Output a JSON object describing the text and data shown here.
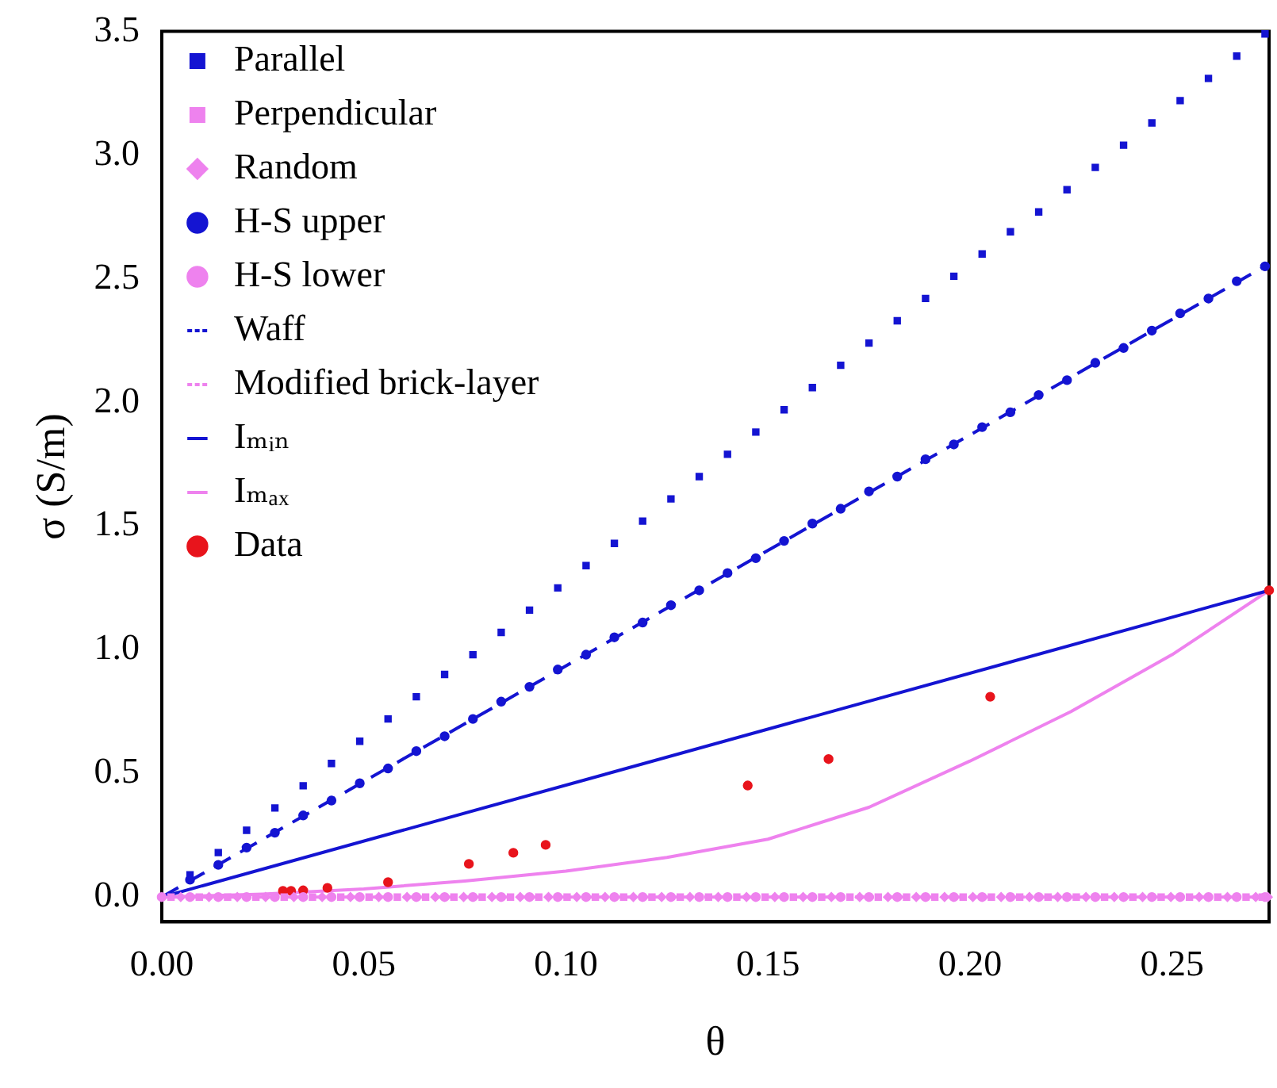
{
  "chart_data": {
    "type": "scatter",
    "xlabel": "θ",
    "ylabel": "σ (S/m)",
    "xlim": [
      0,
      0.274
    ],
    "ylim": [
      -0.1,
      3.5
    ],
    "xticks": [
      {
        "value": 0,
        "label": "0.00"
      },
      {
        "value": 0.05,
        "label": "0.05"
      },
      {
        "value": 0.1,
        "label": "0.10"
      },
      {
        "value": 0.15,
        "label": "0.15"
      },
      {
        "value": 0.2,
        "label": "0.20"
      },
      {
        "value": 0.25,
        "label": "0.25"
      }
    ],
    "yticks": [
      {
        "value": 0,
        "label": "0.0"
      },
      {
        "value": 0.5,
        "label": "0.5"
      },
      {
        "value": 1,
        "label": "1.0"
      },
      {
        "value": 1.5,
        "label": "1.5"
      },
      {
        "value": 2,
        "label": "2.0"
      },
      {
        "value": 2.5,
        "label": "2.5"
      },
      {
        "value": 3,
        "label": "3.0"
      },
      {
        "value": 3.5,
        "label": "3.5"
      }
    ],
    "grid": false,
    "legend": "top left",
    "x": [
      0,
      0.007,
      0.014,
      0.021,
      0.028,
      0.035,
      0.042,
      0.049,
      0.056,
      0.063,
      0.07,
      0.077,
      0.084,
      0.091,
      0.098,
      0.105,
      0.112,
      0.119,
      0.126,
      0.133,
      0.14,
      0.147,
      0.154,
      0.161,
      0.168,
      0.175,
      0.182,
      0.189,
      0.196,
      0.203,
      0.21,
      0.217,
      0.224,
      0.231,
      0.238,
      0.245,
      0.252,
      0.259,
      0.266,
      0.273
    ],
    "series": [
      {
        "name": "Parallel",
        "marker": "square",
        "color": "#1414d2",
        "values": [
          null,
          0.09,
          0.18,
          0.27,
          0.36,
          0.45,
          0.54,
          0.63,
          0.72,
          0.81,
          0.9,
          0.98,
          1.07,
          1.16,
          1.25,
          1.34,
          1.43,
          1.52,
          1.61,
          1.7,
          1.79,
          1.88,
          1.97,
          2.06,
          2.15,
          2.24,
          2.33,
          2.42,
          2.51,
          2.6,
          2.69,
          2.77,
          2.86,
          2.95,
          3.04,
          3.13,
          3.22,
          3.31,
          3.4,
          3.49
        ]
      },
      {
        "name": "Perpendicular",
        "marker": "square",
        "color": "#ee82ee",
        "x": [
          0.0023,
          0.0093,
          0.0163,
          0.0233,
          0.0303,
          0.0373,
          0.0443,
          0.0513,
          0.0583,
          0.0653,
          0.0723,
          0.0793,
          0.0863,
          0.0933,
          0.1003,
          0.1073,
          0.1143,
          0.1213,
          0.1283,
          0.1353,
          0.1423,
          0.1493,
          0.1563,
          0.1633,
          0.1703,
          0.1773,
          0.1843,
          0.1913,
          0.1983,
          0.2053,
          0.2123,
          0.2193,
          0.2263,
          0.2333,
          0.2403,
          0.2473,
          0.2543,
          0.2613,
          0.2683,
          0.2723
        ],
        "values": [
          0,
          0,
          0,
          0,
          0,
          0,
          0,
          0,
          0,
          0,
          0,
          0,
          0,
          0,
          0,
          0,
          0,
          0,
          0,
          0,
          0,
          0,
          0,
          0,
          0,
          0,
          0,
          0,
          0,
          0,
          0,
          0,
          0,
          0,
          0,
          0,
          0,
          0,
          0,
          0
        ]
      },
      {
        "name": "Random",
        "marker": "diamond",
        "color": "#ee82ee",
        "x": [
          0.0047,
          0.0117,
          0.0187,
          0.0257,
          0.0327,
          0.0397,
          0.0467,
          0.0537,
          0.0607,
          0.0677,
          0.0747,
          0.0817,
          0.0887,
          0.0957,
          0.1027,
          0.1097,
          0.1167,
          0.1237,
          0.1307,
          0.1377,
          0.1447,
          0.1517,
          0.1587,
          0.1657,
          0.1727,
          0.1797,
          0.1867,
          0.1937,
          0.2007,
          0.2077,
          0.2147,
          0.2217,
          0.2287,
          0.2357,
          0.2427,
          0.2497,
          0.2567,
          0.2637,
          0.2707,
          0.2737
        ],
        "values": [
          0,
          0,
          0,
          0,
          0,
          0,
          0,
          0,
          0,
          0,
          0,
          0,
          0,
          0,
          0,
          0,
          0,
          0,
          0,
          0,
          0,
          0,
          0,
          0,
          0,
          0,
          0,
          0,
          0,
          0,
          0,
          0,
          0,
          0,
          0,
          0,
          0,
          0,
          0,
          0
        ]
      },
      {
        "name": "H-S upper",
        "marker": "circle",
        "color": "#1414d2",
        "values": [
          null,
          0.07,
          0.13,
          0.2,
          0.26,
          0.33,
          0.39,
          0.46,
          0.52,
          0.59,
          0.65,
          0.72,
          0.79,
          0.85,
          0.92,
          0.98,
          1.05,
          1.11,
          1.18,
          1.24,
          1.31,
          1.37,
          1.44,
          1.51,
          1.57,
          1.64,
          1.7,
          1.77,
          1.83,
          1.9,
          1.96,
          2.03,
          2.09,
          2.16,
          2.22,
          2.29,
          2.36,
          2.42,
          2.49,
          2.55
        ]
      },
      {
        "name": "H-S lower",
        "marker": "circle",
        "color": "#ee82ee",
        "values": [
          0,
          0,
          0,
          0,
          0,
          0,
          0,
          0,
          0,
          0,
          0,
          0,
          0,
          0,
          0,
          0,
          0,
          0,
          0,
          0,
          0,
          0,
          0,
          0,
          0,
          0,
          0,
          0,
          0,
          0,
          0,
          0,
          0,
          0,
          0,
          0,
          0,
          0,
          0,
          0
        ]
      },
      {
        "name": "Waff",
        "type": "line",
        "marker": "none",
        "line_style": "dashed",
        "color": "#1414d2",
        "x": [
          0,
          0.274
        ],
        "values": [
          0,
          2.56
        ]
      },
      {
        "name": "Modified brick-layer",
        "type": "line",
        "marker": "none",
        "line_style": "dashed",
        "color": "#ee82ee",
        "x": [
          0,
          0.274
        ],
        "values": [
          0,
          0
        ]
      },
      {
        "name": "Iₘᵢₙ",
        "type": "line",
        "marker": "none",
        "line_style": "solid",
        "color": "#1414d2",
        "x": [
          0,
          0.274
        ],
        "values": [
          0,
          1.24
        ]
      },
      {
        "name": "Iₘₐₓ",
        "type": "line",
        "marker": "none",
        "line_style": "solid",
        "color": "#ee82ee",
        "x": [
          0,
          0.025,
          0.05,
          0.075,
          0.1,
          0.125,
          0.15,
          0.175,
          0.2,
          0.225,
          0.25,
          0.274
        ],
        "values": [
          0,
          0.012,
          0.033,
          0.065,
          0.105,
          0.16,
          0.234,
          0.363,
          0.55,
          0.75,
          0.98,
          1.24
        ]
      },
      {
        "name": "Data",
        "marker": "circle",
        "color": "#e8141c",
        "x": [
          0.03,
          0.032,
          0.035,
          0.041,
          0.056,
          0.076,
          0.087,
          0.095,
          0.145,
          0.165,
          0.205,
          0.274
        ],
        "values": [
          0.025,
          0.025,
          0.027,
          0.037,
          0.06,
          0.134,
          0.179,
          0.211,
          0.451,
          0.558,
          0.81,
          1.24
        ]
      }
    ]
  }
}
